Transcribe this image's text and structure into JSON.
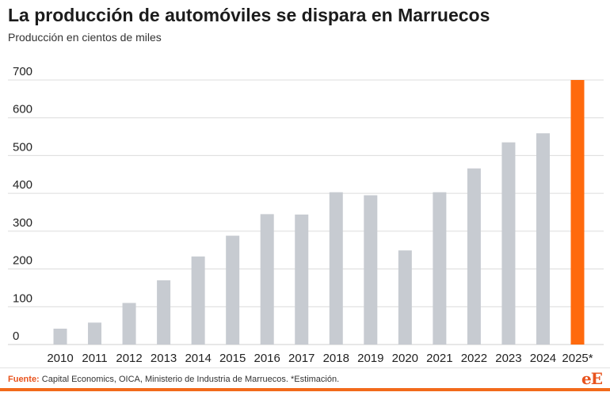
{
  "header": {
    "title": "La producción de automóviles se dispara en Marruecos",
    "subtitle": "Producción en cientos de miles"
  },
  "footer": {
    "source_label": "Fuente:",
    "source_text": " Capital Economics, OICA, Ministerio de Industria de Marruecos. *Estimación.",
    "logo_text": "eE"
  },
  "colors": {
    "bar": "#c7cbd1",
    "highlight": "#ff6a0d",
    "grid": "#dcdcdc",
    "accent": "#e8531d"
  },
  "chart_data": {
    "type": "bar",
    "title": "La producción de automóviles se dispara en Marruecos",
    "subtitle": "Producción en cientos de miles",
    "categories": [
      "2010",
      "2011",
      "2012",
      "2013",
      "2014",
      "2015",
      "2016",
      "2017",
      "2018",
      "2019",
      "2020",
      "2021",
      "2022",
      "2023",
      "2024",
      "2025*"
    ],
    "values": [
      42,
      58,
      110,
      170,
      233,
      288,
      345,
      344,
      403,
      395,
      249,
      403,
      466,
      535,
      559,
      700
    ],
    "highlight_index": 15,
    "y_ticks": [
      0,
      100,
      200,
      300,
      400,
      500,
      600,
      700
    ],
    "ylim": [
      0,
      700
    ],
    "grid": true,
    "legend": "none"
  }
}
